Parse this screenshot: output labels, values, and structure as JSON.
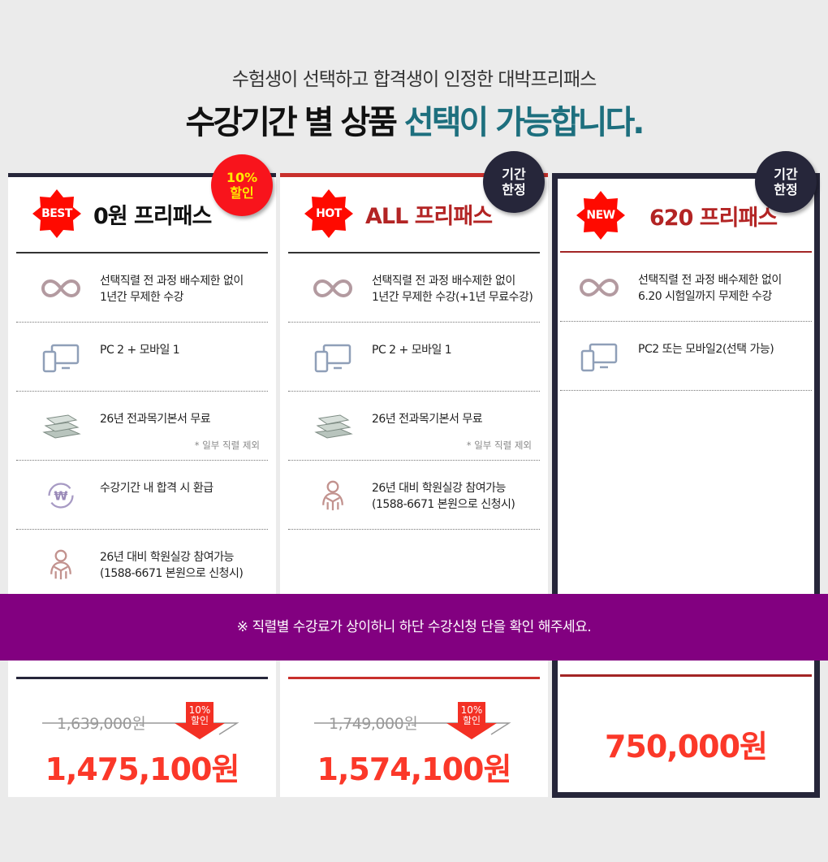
{
  "header": {
    "subtitle": "수험생이 선택하고 합격생이 인정한 대박프리패스",
    "title_main": "수강기간 별 상품 ",
    "title_highlight": "선택이 가능합니다."
  },
  "colors": {
    "highlight": "#1d6f7e",
    "badge_red": "#ff0a00",
    "banner": "#820080",
    "price_red": "#fb3829",
    "dark": "#26263a"
  },
  "notice": "※ 직렬별 수강료가 상이하니 하단 수강신청 단을 확인 해주세요.",
  "cards": [
    {
      "badge": "BEST",
      "title": "0원 프리패스",
      "corner": "10%\n할인",
      "corner_lines": [
        "10%",
        "할인"
      ],
      "features": [
        {
          "icon": "infinity-icon",
          "lines": [
            "선택직렬 전 과정 배수제한 없이",
            "1년간 무제한 수강"
          ]
        },
        {
          "icon": "devices-icon",
          "lines": [
            "PC 2 + 모바일 1"
          ]
        },
        {
          "icon": "books-icon",
          "lines": [
            "26년 전과목기본서 무료"
          ],
          "note": "* 일부 직렬 제외"
        },
        {
          "icon": "refund-won-icon",
          "lines": [
            "수강기간 내 합격 시 환급"
          ]
        },
        {
          "icon": "reading-person-icon",
          "lines": [
            "26년 대비 학원실강 참여가능",
            "(1588-6671 본원으로 신청시)"
          ]
        }
      ],
      "old_price": "1,639,000원",
      "discount_lines": [
        "10%",
        "할인"
      ],
      "price": "1,475,100원"
    },
    {
      "badge": "HOT",
      "title": "ALL 프리패스",
      "corner_lines": [
        "기간",
        "한정"
      ],
      "features": [
        {
          "icon": "infinity-icon",
          "lines": [
            "선택직렬 전 과정 배수제한 없이",
            "1년간 무제한 수강(+1년 무료수강)"
          ]
        },
        {
          "icon": "devices-icon",
          "lines": [
            "PC 2 + 모바일 1"
          ]
        },
        {
          "icon": "books-icon",
          "lines": [
            "26년 전과목기본서 무료"
          ],
          "note": "* 일부 직렬 제외"
        },
        {
          "icon": "reading-person-icon",
          "lines": [
            "26년 대비 학원실강 참여가능",
            "(1588-6671 본원으로 신청시)"
          ]
        }
      ],
      "old_price": "1,749,000원",
      "discount_lines": [
        "10%",
        "할인"
      ],
      "price": "1,574,100원"
    },
    {
      "badge": "NEW",
      "title": "620 프리패스",
      "corner_lines": [
        "기간",
        "한정"
      ],
      "features": [
        {
          "icon": "infinity-icon",
          "lines": [
            "선택직렬 전 과정 배수제한 없이",
            "6.20 시험일까지 무제한 수강"
          ]
        },
        {
          "icon": "devices-icon",
          "lines": [
            "PC2 또는 모바일2(선택 가능)"
          ]
        }
      ],
      "price": "750,000원"
    }
  ]
}
